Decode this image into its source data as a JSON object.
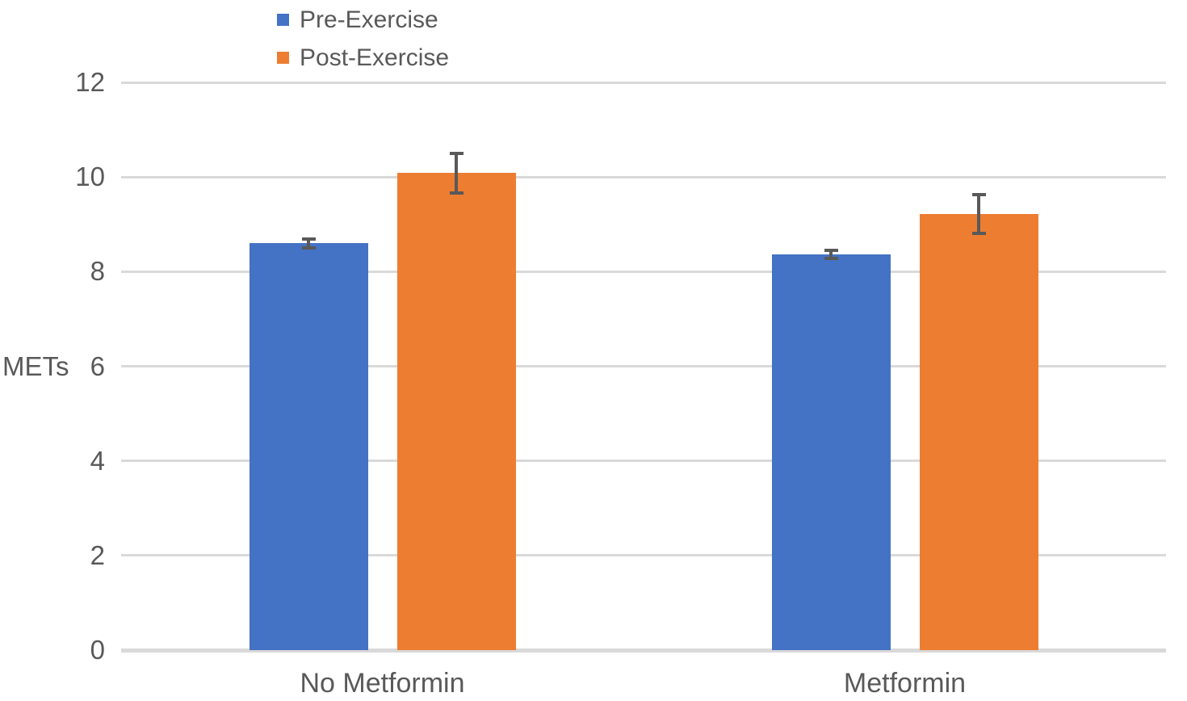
{
  "chart_data": {
    "type": "bar",
    "title": "",
    "categories": [
      "No Metformin",
      "Metformin"
    ],
    "series": [
      {
        "name": "Pre-Exercise",
        "color": "#4472C4",
        "values": [
          8.6,
          8.37
        ],
        "errors": [
          0.13,
          0.12
        ]
      },
      {
        "name": "Post-Exercise",
        "color": "#ED7D31",
        "values": [
          10.08,
          9.22
        ],
        "errors": [
          0.46,
          0.45
        ]
      }
    ],
    "xlabel": "",
    "ylabel": "METs",
    "ylim": [
      0,
      12
    ],
    "yticks": [
      0,
      2,
      4,
      6,
      8,
      10,
      12
    ],
    "grid": true,
    "legend_position": "top-left-stacked",
    "colors": {
      "gridline": "#D9D9D9",
      "axis_line": "#D9D9D9",
      "text": "#595959",
      "error_bar": "#595959",
      "background": "#FFFFFF"
    }
  }
}
